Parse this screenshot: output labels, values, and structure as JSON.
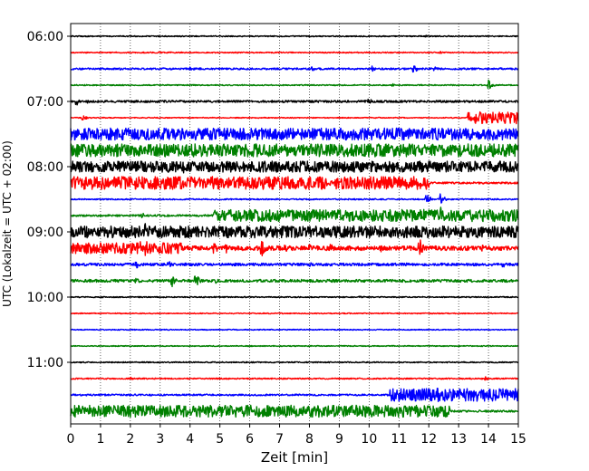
{
  "chart_data": {
    "type": "line",
    "title": "",
    "xlabel": "Zeit  [min]",
    "ylabel": "UTC (Lokalzeit = UTC + 02:00)",
    "xlim": [
      0,
      15
    ],
    "x_ticks": [
      "0",
      "1",
      "2",
      "3",
      "4",
      "5",
      "6",
      "7",
      "8",
      "9",
      "10",
      "11",
      "12",
      "13",
      "14",
      "15"
    ],
    "y_tick_labels": [
      "06:00",
      "07:00",
      "08:00",
      "09:00",
      "10:00",
      "11:00"
    ],
    "grid": "vertical dotted",
    "legend": "none",
    "trace_interval_minutes": 15,
    "trace_colors": [
      "#000000",
      "#ff0000",
      "#0000ff",
      "#008000"
    ],
    "traces": [
      {
        "start": "06:00",
        "color": "#000000",
        "noise": 0.6,
        "events": [
          {
            "t": 3.1,
            "amp": 1.2
          },
          {
            "t": 11.9,
            "amp": 1.5
          },
          {
            "t": 12.6,
            "amp": 1.0
          }
        ]
      },
      {
        "start": "06:15",
        "color": "#ff0000",
        "noise": 0.6,
        "events": [
          {
            "t": 3.0,
            "amp": 1.2
          },
          {
            "t": 12.4,
            "amp": 1.2
          }
        ]
      },
      {
        "start": "06:30",
        "color": "#0000ff",
        "noise": 1.0,
        "events": [
          {
            "t": 4.0,
            "amp": 2.0
          },
          {
            "t": 8.1,
            "amp": 2.8
          },
          {
            "t": 10.1,
            "amp": 3.0
          },
          {
            "t": 11.5,
            "amp": 5.0
          },
          {
            "t": 12.2,
            "amp": 4.5
          }
        ]
      },
      {
        "start": "06:45",
        "color": "#008000",
        "noise": 0.6,
        "events": [
          {
            "t": 10.8,
            "amp": 1.5
          },
          {
            "t": 14.0,
            "amp": 6.0
          }
        ]
      },
      {
        "start": "07:00",
        "color": "#000000",
        "noise": 1.2,
        "events": [
          {
            "t": 0.2,
            "amp": 4.5
          },
          {
            "t": 0.6,
            "amp": 2.5
          },
          {
            "t": 10.0,
            "amp": 3.5
          }
        ]
      },
      {
        "start": "07:15",
        "color": "#ff0000",
        "noise": 0.5,
        "events": [
          {
            "t": 0.4,
            "amp": 4.0
          }
        ],
        "band": {
          "from": 13.3,
          "to": 15,
          "amp": 6.5
        }
      },
      {
        "start": "07:30",
        "color": "#0000ff",
        "noise": 1.0,
        "band": {
          "from": 0,
          "to": 15,
          "amp": 6.5
        }
      },
      {
        "start": "07:45",
        "color": "#008000",
        "noise": 1.0,
        "band": {
          "from": 0,
          "to": 15,
          "amp": 7.0
        }
      },
      {
        "start": "08:00",
        "color": "#000000",
        "noise": 1.0,
        "band": {
          "from": 0,
          "to": 15,
          "amp": 6.0
        },
        "events": [
          {
            "t": 1.2,
            "amp": 8.0
          },
          {
            "t": 3.3,
            "amp": 9.5
          },
          {
            "t": 3.8,
            "amp": 8.0
          }
        ]
      },
      {
        "start": "08:15",
        "color": "#ff0000",
        "noise": 1.0,
        "band": {
          "from": 0,
          "to": 12.0,
          "amp": 7.0
        }
      },
      {
        "start": "08:30",
        "color": "#0000ff",
        "noise": 0.7,
        "events": [
          {
            "t": 11.9,
            "amp": 9.0
          },
          {
            "t": 12.4,
            "amp": 7.0
          }
        ]
      },
      {
        "start": "08:45",
        "color": "#008000",
        "noise": 1.0,
        "band": {
          "from": 4.8,
          "to": 15,
          "amp": 6.5
        },
        "events": [
          {
            "t": 2.4,
            "amp": 3.5
          },
          {
            "t": 11.8,
            "amp": 10.0
          },
          {
            "t": 12.4,
            "amp": 11.0
          }
        ]
      },
      {
        "start": "09:00",
        "color": "#000000",
        "noise": 2.0,
        "band": {
          "from": 0,
          "to": 15,
          "amp": 6.5
        },
        "events": [
          {
            "t": 2.5,
            "amp": 10.0
          },
          {
            "t": 9.2,
            "amp": 6.0
          },
          {
            "t": 12.0,
            "amp": 6.0
          }
        ]
      },
      {
        "start": "09:15",
        "color": "#ff0000",
        "noise": 2.5,
        "band": {
          "from": 0,
          "to": 3.7,
          "amp": 6.0
        },
        "events": [
          {
            "t": 0.4,
            "amp": 6.0
          },
          {
            "t": 2.3,
            "amp": 12.0
          },
          {
            "t": 2.5,
            "amp": 14.0
          },
          {
            "t": 4.8,
            "amp": 8.0
          },
          {
            "t": 5.2,
            "amp": 7.0
          },
          {
            "t": 6.4,
            "amp": 10.0
          },
          {
            "t": 7.2,
            "amp": 4.5
          },
          {
            "t": 8.0,
            "amp": 4.5
          },
          {
            "t": 8.7,
            "amp": 5.5
          },
          {
            "t": 10.4,
            "amp": 4.5
          },
          {
            "t": 11.7,
            "amp": 11.0
          },
          {
            "t": 13.8,
            "amp": 4.0
          }
        ]
      },
      {
        "start": "09:30",
        "color": "#0000ff",
        "noise": 1.5,
        "events": [
          {
            "t": 2.2,
            "amp": 6.0
          },
          {
            "t": 3.3,
            "amp": 4.0
          },
          {
            "t": 8.0,
            "amp": 3.0
          },
          {
            "t": 14.5,
            "amp": 4.0
          }
        ]
      },
      {
        "start": "09:45",
        "color": "#008000",
        "noise": 1.5,
        "events": [
          {
            "t": 2.2,
            "amp": 4.0
          },
          {
            "t": 3.4,
            "amp": 7.0
          },
          {
            "t": 4.2,
            "amp": 8.0
          },
          {
            "t": 4.9,
            "amp": 4.0
          }
        ]
      },
      {
        "start": "10:00",
        "color": "#000000",
        "noise": 0.6,
        "events": [
          {
            "t": 9.7,
            "amp": 2.0
          }
        ]
      },
      {
        "start": "10:15",
        "color": "#ff0000",
        "noise": 0.5
      },
      {
        "start": "10:30",
        "color": "#0000ff",
        "noise": 0.5
      },
      {
        "start": "10:45",
        "color": "#008000",
        "noise": 0.5
      },
      {
        "start": "11:00",
        "color": "#000000",
        "noise": 0.6
      },
      {
        "start": "11:15",
        "color": "#ff0000",
        "noise": 0.7,
        "events": [
          {
            "t": 2.0,
            "amp": 2.0
          },
          {
            "t": 13.9,
            "amp": 2.5
          }
        ]
      },
      {
        "start": "11:30",
        "color": "#0000ff",
        "noise": 0.9,
        "band": {
          "from": 10.7,
          "to": 15,
          "amp": 7.0
        },
        "events": [
          {
            "t": 12.3,
            "amp": 8.5
          }
        ]
      },
      {
        "start": "11:45",
        "color": "#008000",
        "noise": 1.0,
        "band": {
          "from": 0,
          "to": 12.7,
          "amp": 6.5
        }
      }
    ]
  }
}
